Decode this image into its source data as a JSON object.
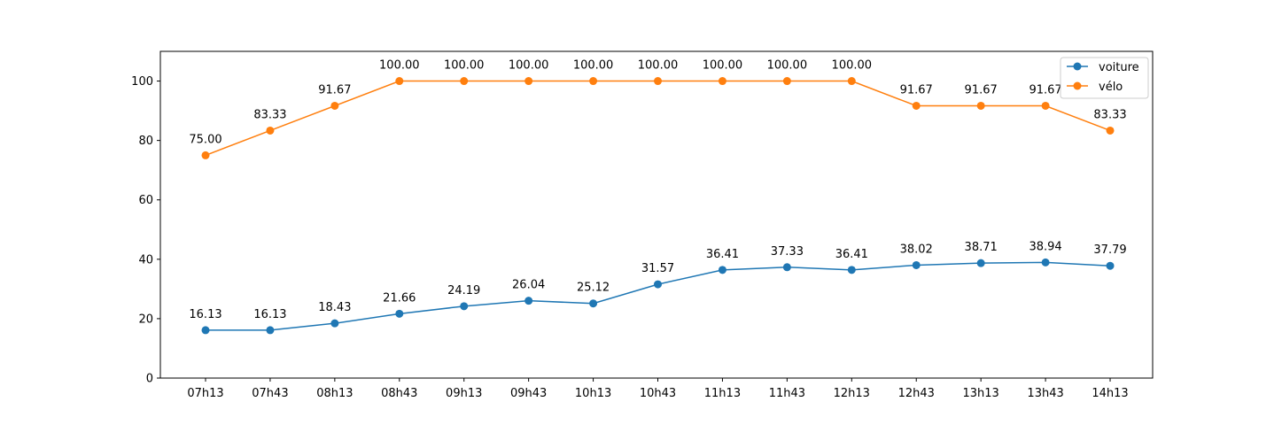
{
  "chart_data": {
    "type": "line",
    "title": "",
    "xlabel": "",
    "ylabel": "",
    "categories": [
      "07h13",
      "07h43",
      "08h13",
      "08h43",
      "09h13",
      "09h43",
      "10h13",
      "10h43",
      "11h13",
      "11h43",
      "12h13",
      "12h43",
      "13h13",
      "13h43",
      "14h13"
    ],
    "ylim": [
      0,
      110
    ],
    "yticks": [
      0,
      20,
      40,
      60,
      80,
      100
    ],
    "grid": false,
    "legend_position": "top-right",
    "series": [
      {
        "name": "voiture",
        "color": "#1f77b4",
        "marker": "circle",
        "values": [
          16.13,
          16.13,
          18.43,
          21.66,
          24.19,
          26.04,
          25.12,
          31.57,
          36.41,
          37.33,
          36.41,
          38.02,
          38.71,
          38.94,
          37.79
        ],
        "labels": [
          "16.13",
          "16.13",
          "18.43",
          "21.66",
          "24.19",
          "26.04",
          "25.12",
          "31.57",
          "36.41",
          "37.33",
          "36.41",
          "38.02",
          "38.71",
          "38.94",
          "37.79"
        ]
      },
      {
        "name": "vélo",
        "color": "#ff7f0e",
        "marker": "circle",
        "values": [
          75.0,
          83.33,
          91.67,
          100.0,
          100.0,
          100.0,
          100.0,
          100.0,
          100.0,
          100.0,
          100.0,
          91.67,
          91.67,
          91.67,
          83.33
        ],
        "labels": [
          "75.00",
          "83.33",
          "91.67",
          "100.00",
          "100.00",
          "100.00",
          "100.00",
          "100.00",
          "100.00",
          "100.00",
          "100.00",
          "91.67",
          "91.67",
          "91.67",
          "83.33"
        ]
      }
    ]
  }
}
